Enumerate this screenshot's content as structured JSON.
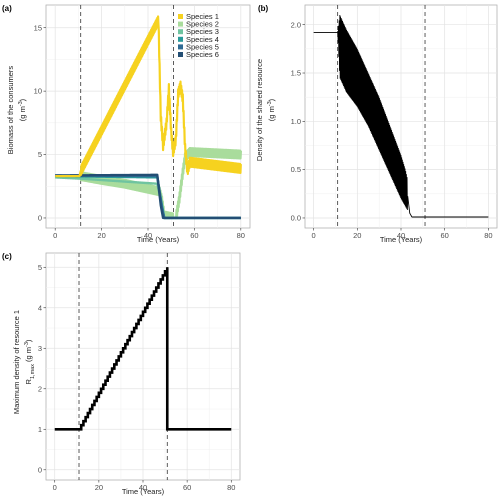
{
  "chart_data": [
    {
      "panel": "(a)",
      "type": "line",
      "xlabel": "Time (Years)",
      "ylabel": [
        "Biomass of the consumers",
        "(g m",
        "-3",
        ")"
      ],
      "xlim": [
        0,
        80
      ],
      "ylim": [
        0,
        16
      ],
      "xticks": [
        0,
        20,
        40,
        60,
        80
      ],
      "yticks": [
        0,
        5,
        10,
        15
      ],
      "vlines": [
        11,
        51
      ],
      "grid": true,
      "legend_position": "top-right",
      "series": [
        {
          "name": "Species 1",
          "color": "#f6d21f",
          "oscillation": 0.35,
          "points": [
            [
              0,
              3.3
            ],
            [
              10.5,
              3.3
            ],
            [
              11,
              3.7
            ],
            [
              44.5,
              15.6
            ],
            [
              45.5,
              8
            ],
            [
              46.5,
              5.7
            ],
            [
              48,
              7.5
            ],
            [
              49,
              10.2
            ],
            [
              50,
              6.8
            ],
            [
              50.8,
              5.2
            ],
            [
              52,
              6.2
            ],
            [
              53,
              9.8
            ],
            [
              54,
              10.4
            ],
            [
              55,
              9.4
            ],
            [
              56,
              5.5
            ],
            [
              57,
              3.7
            ],
            [
              58,
              4.4
            ],
            [
              80,
              3.9
            ]
          ]
        },
        {
          "name": "Species 2",
          "color": "#a9dc9c",
          "oscillation": 0.3,
          "points": [
            [
              0,
              3.3
            ],
            [
              11,
              3.3
            ],
            [
              20,
              3
            ],
            [
              30,
              2.7
            ],
            [
              40,
              2.3
            ],
            [
              45,
              2.1
            ],
            [
              46,
              1.4
            ],
            [
              47,
              0.2
            ],
            [
              52,
              0
            ],
            [
              53.5,
              1.5
            ],
            [
              55,
              3.6
            ],
            [
              56,
              4.8
            ],
            [
              58,
              5.2
            ],
            [
              80,
              5
            ]
          ]
        },
        {
          "name": "Species 3",
          "color": "#6fc4a0",
          "oscillation": 0,
          "points": [
            [
              0,
              3.2
            ],
            [
              11,
              3.1
            ],
            [
              44,
              2.7
            ],
            [
              46,
              1
            ],
            [
              47,
              0
            ],
            [
              80,
              0
            ]
          ]
        },
        {
          "name": "Species 4",
          "color": "#2a9a9a",
          "oscillation": 0,
          "points": [
            [
              0,
              3.3
            ],
            [
              44,
              3.2
            ],
            [
              46,
              1
            ],
            [
              47,
              0
            ],
            [
              80,
              0
            ]
          ]
        },
        {
          "name": "Species 5",
          "color": "#2f6b94",
          "oscillation": 0,
          "points": [
            [
              0,
              3.35
            ],
            [
              44,
              3.3
            ],
            [
              46,
              0.8
            ],
            [
              47,
              0
            ],
            [
              80,
              0
            ]
          ]
        },
        {
          "name": "Species 6",
          "color": "#234e74",
          "oscillation": 0,
          "points": [
            [
              0,
              3.35
            ],
            [
              44,
              3.4
            ],
            [
              45.5,
              1
            ],
            [
              46.5,
              0
            ],
            [
              80,
              0
            ]
          ]
        }
      ]
    },
    {
      "panel": "(b)",
      "type": "line",
      "xlabel": "Time (Years)",
      "ylabel": [
        "Density of the shared resource",
        "(g m",
        "-3",
        ")"
      ],
      "xlim": [
        0,
        80
      ],
      "ylim": [
        0,
        2.1
      ],
      "xticks": [
        0,
        20,
        40,
        60,
        80
      ],
      "yticks": [
        0.0,
        0.5,
        1.0,
        1.5,
        2.0
      ],
      "ytick_labels": [
        "0.0",
        "0.5",
        "1.0",
        "1.5",
        "2.0"
      ],
      "vlines": [
        11,
        51
      ],
      "grid": true,
      "series": [
        {
          "color": "#000000",
          "oscillating_span": [
            11,
            43
          ],
          "envelope": [
            [
              0,
              1.92,
              1.92
            ],
            [
              11,
              1.92,
              1.92
            ],
            [
              12,
              2.1,
              1.45
            ],
            [
              15,
              1.95,
              1.3
            ],
            [
              20,
              1.75,
              1.15
            ],
            [
              25,
              1.5,
              0.95
            ],
            [
              30,
              1.25,
              0.7
            ],
            [
              35,
              0.95,
              0.45
            ],
            [
              40,
              0.65,
              0.2
            ],
            [
              42,
              0.5,
              0.12
            ],
            [
              43,
              0.4,
              0.08
            ],
            [
              44,
              0.05,
              0.05
            ],
            [
              45,
              0.01,
              0.01
            ],
            [
              80,
              0.01,
              0.01
            ]
          ]
        }
      ]
    },
    {
      "panel": "(c)",
      "type": "line",
      "xlabel": "Time (Years)",
      "ylabel": [
        "Maximum density of resource 1",
        "R",
        "1,max",
        " (g m",
        "-3",
        ")"
      ],
      "xlim": [
        0,
        80
      ],
      "ylim": [
        0,
        5.1
      ],
      "xticks": [
        0,
        20,
        40,
        60,
        80
      ],
      "yticks": [
        0,
        1,
        2,
        3,
        4,
        5
      ],
      "vlines": [
        11,
        51
      ],
      "grid": true,
      "series": [
        {
          "color": "#000000",
          "steps": 40,
          "points": [
            [
              0,
              1
            ],
            [
              11,
              1
            ],
            [
              51,
              5
            ],
            [
              51,
              1
            ],
            [
              80,
              1
            ]
          ]
        }
      ]
    }
  ]
}
